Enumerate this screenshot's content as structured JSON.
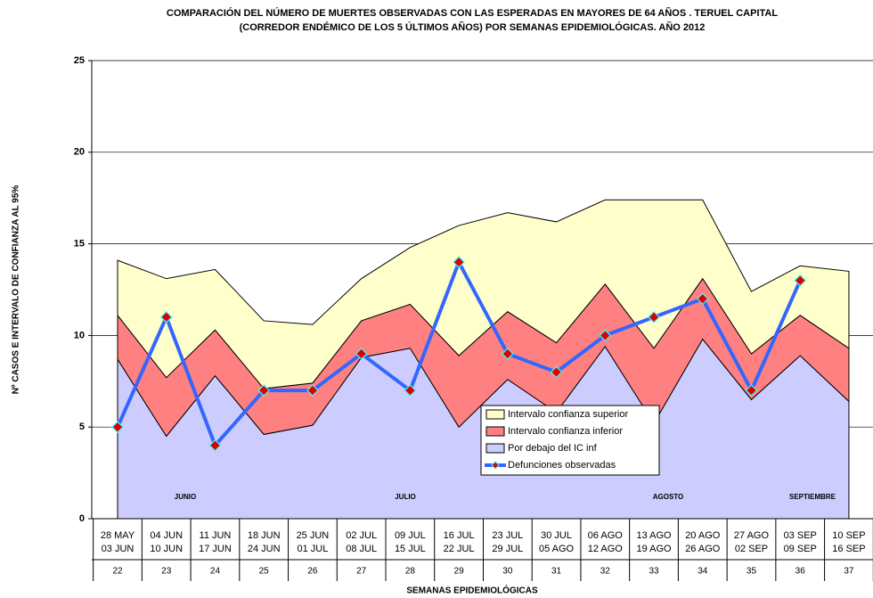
{
  "chart_data": {
    "type": "stacked_area",
    "title": [
      "COMPARACIÓN DEL NÚMERO DE MUERTES OBSERVADAS CON LAS ESPERADAS EN MAYORES DE 64 AÑOS .  TERUEL CAPITAL",
      "(CORREDOR ENDÉMICO DE LOS 5 ÚLTIMOS AÑOS) POR SEMANAS EPIDEMIOLÓGICAS.   AÑO 2012"
    ],
    "y_label": "Nº CASOS E INTERVALO DE CONFIANZA AL 95%",
    "x_label": "SEMANAS EPIDEMIOLÓGICAS",
    "categories": [
      "22",
      "23",
      "24",
      "25",
      "26",
      "27",
      "28",
      "29",
      "30",
      "31",
      "32",
      "33",
      "34",
      "35",
      "36",
      "37"
    ],
    "dates": [
      [
        "28 MAY",
        "03 JUN"
      ],
      [
        "04 JUN",
        "10 JUN"
      ],
      [
        "11 JUN",
        "17 JUN"
      ],
      [
        "18 JUN",
        "24 JUN"
      ],
      [
        "25 JUN",
        "01 JUL"
      ],
      [
        "02 JUL",
        "08 JUL"
      ],
      [
        "09 JUL",
        "15 JUL"
      ],
      [
        "16 JUL",
        "22 JUL"
      ],
      [
        "23 JUL",
        "29 JUL"
      ],
      [
        "30 JUL",
        "05 AGO"
      ],
      [
        "06 AGO",
        "12 AGO"
      ],
      [
        "13 AGO",
        "19 AGO"
      ],
      [
        "20 AGO",
        "26 AGO"
      ],
      [
        "27 AGO",
        "02 SEP"
      ],
      [
        "03 SEP",
        "09 SEP"
      ],
      [
        "10 SEP",
        "16 SEP"
      ]
    ],
    "months": [
      "JUNIO",
      "JULIO",
      "AGOSTO",
      "SEPTIEMBRE"
    ],
    "series": [
      {
        "name": "Por debajo del IC inf",
        "kind": "area",
        "color": "#ccccff",
        "values": [
          8.7,
          4.5,
          7.8,
          4.6,
          5.1,
          8.8,
          9.3,
          5.0,
          7.6,
          5.8,
          9.4,
          5.2,
          9.8,
          6.5,
          8.9,
          6.4
        ]
      },
      {
        "name": "Intervalo confianza inferior",
        "kind": "area",
        "color": "#ff8080",
        "values": [
          2.4,
          3.2,
          2.5,
          2.5,
          2.3,
          2.0,
          2.4,
          3.9,
          3.7,
          3.8,
          3.4,
          4.1,
          3.3,
          2.5,
          2.2,
          2.9
        ]
      },
      {
        "name": "Intervalo confianza superior",
        "kind": "area",
        "color": "#ffffcc",
        "values": [
          3.0,
          5.4,
          3.3,
          3.7,
          3.2,
          2.3,
          3.1,
          7.1,
          5.4,
          6.6,
          4.6,
          8.1,
          4.3,
          3.4,
          2.7,
          4.2
        ]
      },
      {
        "name": "Defunciones observadas",
        "kind": "line",
        "color": "#3366ff",
        "values": [
          5,
          11,
          4,
          7,
          7,
          9,
          7,
          14,
          9,
          8,
          10,
          11,
          12,
          7,
          13,
          null
        ]
      }
    ],
    "ylim": [
      0,
      25
    ],
    "yticks": [
      0,
      5,
      10,
      15,
      20,
      25
    ],
    "grid": true
  }
}
